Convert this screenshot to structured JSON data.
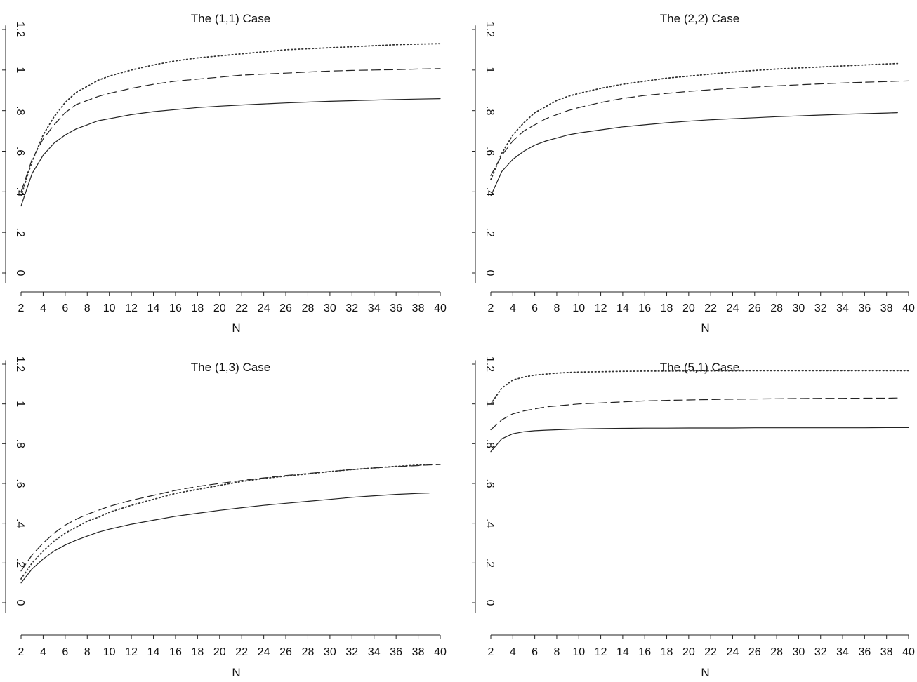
{
  "chart_data": [
    {
      "type": "line",
      "title": "The (1,1) Case",
      "xlabel": "N",
      "ylabel": "",
      "xlim": [
        2,
        40
      ],
      "ylim": [
        -0.05,
        1.22
      ],
      "xticks": [
        2,
        4,
        6,
        8,
        10,
        12,
        14,
        16,
        18,
        20,
        22,
        24,
        26,
        28,
        30,
        32,
        34,
        36,
        38,
        40
      ],
      "xtick_labels": [
        "2",
        "4",
        "6",
        "8",
        "10",
        "12",
        "14",
        "16",
        "18",
        "20",
        "22",
        "24",
        "26",
        "28",
        "30",
        "32",
        "34",
        "36",
        "38",
        "40"
      ],
      "yticks": [
        0,
        0.2,
        0.4,
        0.6,
        0.8,
        1,
        1.2
      ],
      "ytick_labels": [
        "0",
        ".2",
        ".4",
        ".6",
        ".8",
        "1",
        "1.2"
      ],
      "grid": false,
      "x": [
        2,
        3,
        4,
        5,
        6,
        7,
        8,
        9,
        10,
        12,
        14,
        16,
        18,
        20,
        22,
        24,
        26,
        28,
        30,
        32,
        34,
        36,
        38,
        40
      ],
      "series": [
        {
          "style": "solid",
          "values": [
            0.33,
            0.49,
            0.58,
            0.64,
            0.68,
            0.71,
            0.73,
            0.75,
            0.76,
            0.78,
            0.795,
            0.805,
            0.815,
            0.822,
            0.828,
            0.833,
            0.838,
            0.842,
            0.846,
            0.849,
            0.852,
            0.855,
            0.857,
            0.859
          ]
        },
        {
          "style": "dashed",
          "values": [
            0.4,
            0.56,
            0.66,
            0.73,
            0.79,
            0.83,
            0.85,
            0.87,
            0.885,
            0.91,
            0.93,
            0.945,
            0.955,
            0.965,
            0.975,
            0.98,
            0.985,
            0.99,
            0.995,
            0.998,
            1.0,
            1.002,
            1.005,
            1.007
          ]
        },
        {
          "style": "dotted",
          "values": [
            0.38,
            0.55,
            0.68,
            0.77,
            0.84,
            0.89,
            0.92,
            0.95,
            0.97,
            1.0,
            1.025,
            1.045,
            1.06,
            1.07,
            1.08,
            1.09,
            1.1,
            1.105,
            1.11,
            1.115,
            1.12,
            1.125,
            1.128,
            1.13
          ]
        }
      ]
    },
    {
      "type": "line",
      "title": "The (2,2) Case",
      "xlabel": "N",
      "ylabel": "",
      "xlim": [
        2,
        40
      ],
      "ylim": [
        -0.05,
        1.22
      ],
      "xticks": [
        2,
        4,
        6,
        8,
        10,
        12,
        14,
        16,
        18,
        20,
        22,
        24,
        26,
        28,
        30,
        32,
        34,
        36,
        38,
        40
      ],
      "xtick_labels": [
        "2",
        "4",
        "6",
        "8",
        "10",
        "12",
        "14",
        "16",
        "18",
        "20",
        "22",
        "24",
        "26",
        "28",
        "30",
        "32",
        "34",
        "36",
        "38",
        "40"
      ],
      "yticks": [
        0,
        0.2,
        0.4,
        0.6,
        0.8,
        1,
        1.2
      ],
      "ytick_labels": [
        "0",
        ".2",
        ".4",
        ".6",
        ".8",
        "1",
        "1.2"
      ],
      "grid": false,
      "x": [
        2,
        3,
        4,
        5,
        6,
        7,
        8,
        9,
        10,
        12,
        14,
        16,
        18,
        20,
        22,
        24,
        26,
        28,
        30,
        32,
        34,
        36,
        38,
        39,
        40
      ],
      "series": [
        {
          "style": "solid",
          "values": [
            0.38,
            0.5,
            0.56,
            0.6,
            0.63,
            0.65,
            0.665,
            0.68,
            0.69,
            0.705,
            0.72,
            0.73,
            0.74,
            0.748,
            0.755,
            0.76,
            0.765,
            0.77,
            0.774,
            0.778,
            0.782,
            0.785,
            0.788,
            0.79,
            null
          ]
        },
        {
          "style": "dashed",
          "values": [
            0.48,
            0.58,
            0.65,
            0.7,
            0.73,
            0.76,
            0.78,
            0.8,
            0.815,
            0.84,
            0.86,
            0.875,
            0.885,
            0.895,
            0.903,
            0.91,
            0.916,
            0.922,
            0.927,
            0.932,
            0.936,
            0.94,
            0.943,
            0.945,
            0.946
          ]
        },
        {
          "style": "dotted",
          "values": [
            0.46,
            0.59,
            0.68,
            0.74,
            0.79,
            0.82,
            0.85,
            0.87,
            0.885,
            0.91,
            0.93,
            0.945,
            0.96,
            0.97,
            0.98,
            0.99,
            0.998,
            1.005,
            1.01,
            1.015,
            1.02,
            1.025,
            1.03,
            1.032,
            null
          ]
        }
      ]
    },
    {
      "type": "line",
      "title": "The (1,3) Case",
      "xlabel": "N",
      "ylabel": "",
      "xlim": [
        2,
        40
      ],
      "ylim": [
        -0.05,
        1.22
      ],
      "xticks": [
        2,
        4,
        6,
        8,
        10,
        12,
        14,
        16,
        18,
        20,
        22,
        24,
        26,
        28,
        30,
        32,
        34,
        36,
        38,
        40
      ],
      "xtick_labels": [
        "2",
        "4",
        "6",
        "8",
        "10",
        "12",
        "14",
        "16",
        "18",
        "20",
        "22",
        "24",
        "26",
        "28",
        "30",
        "32",
        "34",
        "36",
        "38",
        "40"
      ],
      "yticks": [
        0,
        0.2,
        0.4,
        0.6,
        0.8,
        1,
        1.2
      ],
      "ytick_labels": [
        "0",
        ".2",
        ".4",
        ".6",
        ".8",
        "1",
        "1.2"
      ],
      "grid": false,
      "x": [
        2,
        3,
        4,
        5,
        6,
        7,
        8,
        9,
        10,
        12,
        14,
        16,
        18,
        20,
        22,
        24,
        26,
        28,
        30,
        32,
        34,
        36,
        38,
        39,
        40
      ],
      "series": [
        {
          "style": "solid",
          "values": [
            0.1,
            0.17,
            0.22,
            0.26,
            0.29,
            0.315,
            0.335,
            0.355,
            0.37,
            0.395,
            0.415,
            0.435,
            0.45,
            0.465,
            0.478,
            0.49,
            0.5,
            0.51,
            0.52,
            0.53,
            0.538,
            0.545,
            0.55,
            0.552,
            null
          ]
        },
        {
          "style": "dashed",
          "values": [
            0.16,
            0.24,
            0.3,
            0.35,
            0.39,
            0.42,
            0.445,
            0.465,
            0.485,
            0.515,
            0.54,
            0.565,
            0.585,
            0.6,
            0.615,
            0.628,
            0.64,
            0.65,
            0.66,
            0.67,
            0.678,
            0.685,
            0.69,
            0.693,
            0.695
          ]
        },
        {
          "style": "dotted",
          "values": [
            0.12,
            0.2,
            0.26,
            0.31,
            0.35,
            0.38,
            0.41,
            0.43,
            0.455,
            0.49,
            0.52,
            0.55,
            0.57,
            0.59,
            0.61,
            0.625,
            0.637,
            0.648,
            0.66,
            0.67,
            0.678,
            0.686,
            0.692,
            0.695,
            null
          ]
        }
      ]
    },
    {
      "type": "line",
      "title": "The (5,1) Case",
      "xlabel": "N",
      "ylabel": "",
      "xlim": [
        2,
        40
      ],
      "ylim": [
        -0.05,
        1.22
      ],
      "xticks": [
        2,
        4,
        6,
        8,
        10,
        12,
        14,
        16,
        18,
        20,
        22,
        24,
        26,
        28,
        30,
        32,
        34,
        36,
        38,
        40
      ],
      "xtick_labels": [
        "2",
        "4",
        "6",
        "8",
        "10",
        "12",
        "14",
        "16",
        "18",
        "20",
        "22",
        "24",
        "26",
        "28",
        "30",
        "32",
        "34",
        "36",
        "38",
        "40"
      ],
      "yticks": [
        0,
        0.2,
        0.4,
        0.6,
        0.8,
        1,
        1.2
      ],
      "ytick_labels": [
        "0",
        ".2",
        ".4",
        ".6",
        ".8",
        "1",
        "1.2"
      ],
      "grid": false,
      "x": [
        2,
        3,
        4,
        5,
        6,
        7,
        8,
        9,
        10,
        12,
        14,
        16,
        18,
        20,
        22,
        24,
        26,
        28,
        30,
        32,
        34,
        36,
        38,
        39,
        40
      ],
      "series": [
        {
          "style": "solid",
          "values": [
            0.76,
            0.825,
            0.85,
            0.86,
            0.865,
            0.868,
            0.87,
            0.872,
            0.874,
            0.876,
            0.877,
            0.878,
            0.878,
            0.879,
            0.879,
            0.879,
            0.88,
            0.88,
            0.88,
            0.88,
            0.88,
            0.88,
            0.881,
            0.881,
            0.881
          ]
        },
        {
          "style": "dashed",
          "values": [
            0.87,
            0.92,
            0.95,
            0.965,
            0.975,
            0.985,
            0.99,
            0.995,
            1.0,
            1.005,
            1.01,
            1.015,
            1.018,
            1.02,
            1.022,
            1.024,
            1.025,
            1.026,
            1.027,
            1.028,
            1.028,
            1.029,
            1.029,
            1.03,
            null
          ]
        },
        {
          "style": "dotted",
          "values": [
            1.0,
            1.08,
            1.12,
            1.135,
            1.145,
            1.15,
            1.155,
            1.158,
            1.16,
            1.162,
            1.164,
            1.165,
            1.165,
            1.166,
            1.166,
            1.166,
            1.167,
            1.167,
            1.167,
            1.167,
            1.167,
            1.167,
            1.167,
            1.167,
            1.167
          ]
        }
      ]
    }
  ]
}
